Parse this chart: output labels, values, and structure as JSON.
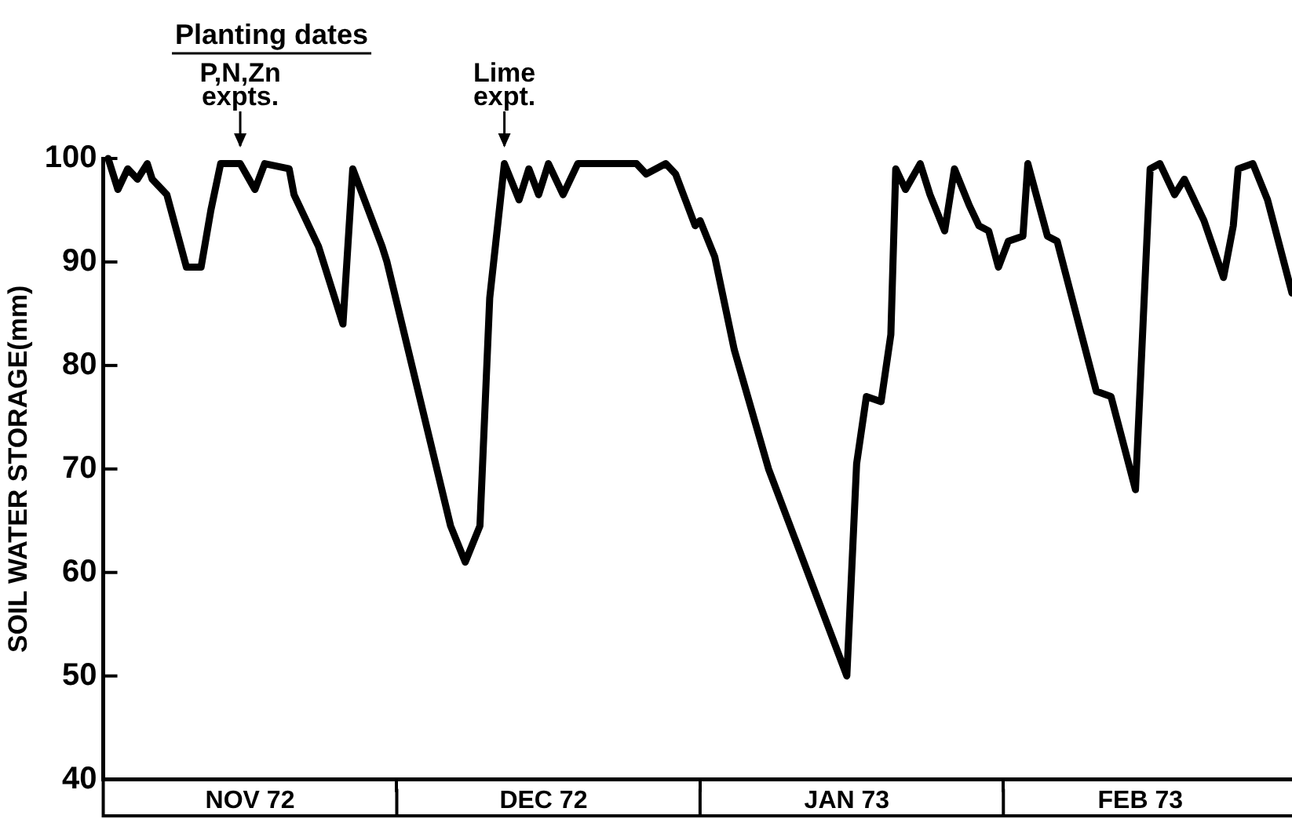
{
  "chart_data": {
    "type": "line",
    "ylabel": "SOIL WATER STORAGE(mm)",
    "xlim": [
      "1972-11-01",
      "1973-03-02T12:00"
    ],
    "ylim": [
      40,
      100
    ],
    "yticks": [
      40,
      50,
      60,
      70,
      80,
      90,
      100
    ],
    "xticks": [
      {
        "value": "1972-11-16",
        "label": "NOV 72"
      },
      {
        "value": "1972-12-01",
        "label": null
      },
      {
        "value": "1972-12-16",
        "label": "DEC 72"
      },
      {
        "value": "1973-01-01",
        "label": null
      },
      {
        "value": "1973-01-16",
        "label": "JAN 73"
      },
      {
        "value": "1973-02-01",
        "label": null
      },
      {
        "value": "1973-02-15",
        "label": "FEB 73"
      }
    ],
    "grid": false,
    "legend": false,
    "marker": "none",
    "line_style": "solid",
    "annotations": [
      "Planting dates",
      {
        "text": "P,N,Zn expts.",
        "x": "1972-11-15",
        "y": 100
      },
      {
        "text": "Lime expt.",
        "x": "1972-12-12",
        "y": 100
      }
    ],
    "series": [
      {
        "color": "#000000",
        "x": [
          "1972-11-01T12:00",
          "1972-11-02T12:00",
          "1972-11-03T12:00",
          "1972-11-04T12:00",
          "1972-11-05T12:00",
          "1972-11-06",
          "1972-11-07T12:00",
          "1972-11-09T12:00",
          "1972-11-11",
          "1972-11-12",
          "1972-11-13",
          "1972-11-15",
          "1972-11-16T12:00",
          "1972-11-17T12:00",
          "1972-11-20",
          "1972-11-20T12:00",
          "1972-11-23",
          "1972-11-25T12:00",
          "1972-11-26T12:00",
          "1972-11-29T12:00",
          "1972-11-30",
          "1972-12-06T12:00",
          "1972-12-08",
          "1972-12-09T12:00",
          "1972-12-10T12:00",
          "1972-12-12",
          "1972-12-13T12:00",
          "1972-12-14T12:00",
          "1972-12-15T12:00",
          "1972-12-16T12:00",
          "1972-12-18",
          "1972-12-19T12:00",
          "1972-12-25T12:00",
          "1972-12-26T12:00",
          "1972-12-28T12:00",
          "1972-12-29T12:00",
          "1972-12-30T12:00",
          "1972-12-31T12:00",
          "1973-01-01",
          "1973-01-02T12:00",
          "1973-01-04T12:00",
          "1973-01-08",
          "1973-01-10",
          "1973-01-16",
          "1973-01-17",
          "1973-01-18",
          "1973-01-19T12:00",
          "1973-01-20T12:00",
          "1973-01-21",
          "1973-01-22",
          "1973-01-23T12:00",
          "1973-01-24T12:00",
          "1973-01-26",
          "1973-01-27",
          "1973-01-28T12:00",
          "1973-01-29T12:00",
          "1973-01-30T12:00",
          "1973-01-31T12:00",
          "1973-02-01T12:00",
          "1973-02-03",
          "1973-02-03T12:00",
          "1973-02-05T12:00",
          "1973-02-06T12:00",
          "1973-02-10T12:00",
          "1973-02-12",
          "1973-02-14T12:00",
          "1973-02-16",
          "1973-02-17",
          "1973-02-18T12:00",
          "1973-02-19T12:00",
          "1973-02-21T12:00",
          "1973-02-23T12:00",
          "1973-02-24T12:00",
          "1973-02-25",
          "1973-02-26T12:00",
          "1973-02-28",
          "1973-03-02T12:00"
        ],
        "values": [
          100,
          97,
          99,
          98,
          99.5,
          98,
          96.5,
          89.5,
          89.5,
          95,
          99.5,
          99.5,
          97,
          99.5,
          99,
          96.5,
          91.5,
          84,
          99,
          91.5,
          90,
          64.5,
          61,
          64.5,
          86.5,
          99.5,
          96,
          99,
          96.5,
          99.5,
          96.5,
          99.5,
          99.5,
          98.5,
          99.5,
          98.5,
          96,
          93.5,
          94,
          90.5,
          81.5,
          70,
          65,
          50,
          70.5,
          77,
          76.5,
          83,
          99,
          97,
          99.5,
          96.5,
          93,
          99,
          95.5,
          93.5,
          93,
          89.5,
          92,
          92.5,
          99.5,
          92.5,
          92,
          77.5,
          77,
          68,
          99,
          99.5,
          96.5,
          98,
          94,
          88.5,
          93.5,
          99,
          99.5,
          96,
          87
        ]
      }
    ]
  }
}
